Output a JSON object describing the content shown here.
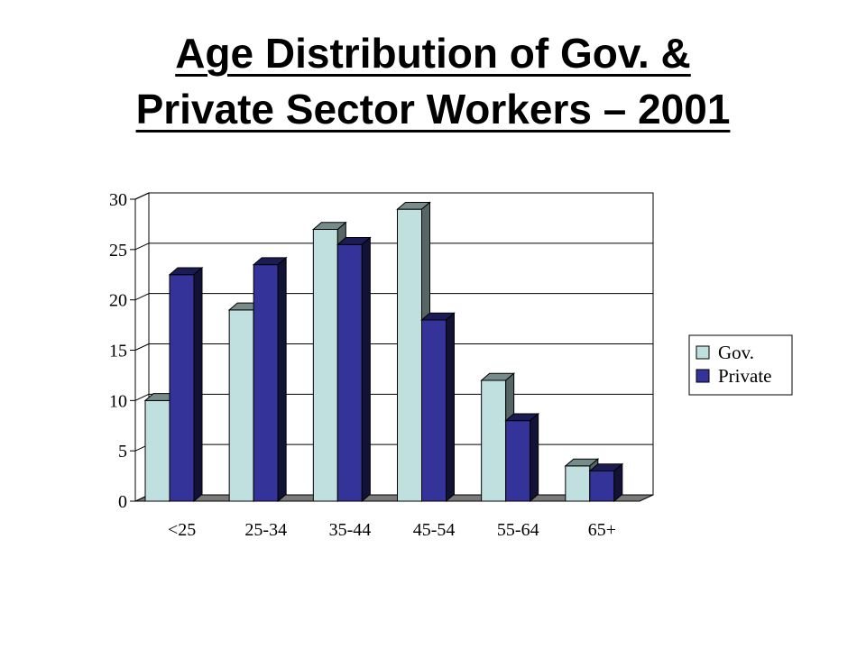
{
  "title": {
    "line1": "Age Distribution of Gov. &",
    "line2": "Private Sector Workers – 2001"
  },
  "chart_data": {
    "type": "bar",
    "categories": [
      "<25",
      "25-34",
      "35-44",
      "45-54",
      "55-64",
      "65+"
    ],
    "series": [
      {
        "name": "Gov.",
        "values": [
          10,
          19,
          27,
          29,
          12,
          3.5
        ],
        "color": "#c0e0e0"
      },
      {
        "name": "Private",
        "values": [
          22.5,
          23.5,
          25.5,
          18,
          8,
          3
        ],
        "color": "#333399"
      }
    ],
    "yticks": [
      "0",
      "5",
      "10",
      "15",
      "20",
      "25",
      "30"
    ],
    "ylim": [
      0,
      30
    ],
    "grid": true,
    "legend_position": "right"
  }
}
